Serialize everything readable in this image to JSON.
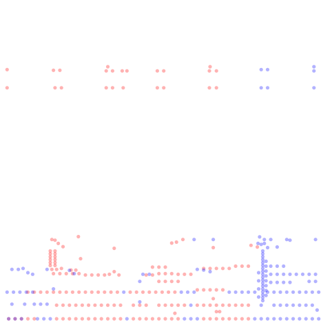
{
  "chart_data": {
    "type": "scatter",
    "title": "",
    "xlabel": "",
    "ylabel": "",
    "grid": false,
    "legend": "none",
    "xlim": [
      0,
      100
    ],
    "ylim": [
      0,
      100
    ],
    "colors": {
      "red": "#ff0000",
      "blue": "#0000ff"
    },
    "series": [
      {
        "color": "red",
        "points": [
          [
            0.5,
            79
          ],
          [
            0.5,
            73.4
          ],
          [
            15,
            78.8
          ],
          [
            17,
            78.8
          ],
          [
            15.5,
            73.4
          ],
          [
            17.5,
            73.4
          ],
          [
            32,
            79.9
          ],
          [
            33.5,
            78.6
          ],
          [
            31.5,
            78.6
          ],
          [
            33.5,
            73.4
          ],
          [
            31.5,
            73.4
          ],
          [
            36.5,
            78.6
          ],
          [
            38,
            78.6
          ],
          [
            36.8,
            73.4
          ],
          [
            47.5,
            78.6
          ],
          [
            49.5,
            78.6
          ],
          [
            47.5,
            73.4
          ],
          [
            49.5,
            73.4
          ],
          [
            64,
            79.9
          ],
          [
            63.8,
            78.6
          ],
          [
            66,
            78.6
          ],
          [
            63.8,
            73.4
          ],
          [
            66,
            73.4
          ],
          [
            14.5,
            26.7
          ],
          [
            15.5,
            26.5
          ],
          [
            16.5,
            25.5
          ],
          [
            18,
            24.5
          ],
          [
            22.8,
            27.6
          ],
          [
            34,
            24
          ],
          [
            52,
            25.6
          ],
          [
            53.5,
            25.9
          ],
          [
            55.5,
            26.7
          ],
          [
            65,
            24.2
          ],
          [
            76.8,
            24.9
          ],
          [
            78.8,
            24.4
          ],
          [
            14,
            23.2
          ],
          [
            14,
            22.3
          ],
          [
            14,
            21.4
          ],
          [
            14,
            20.5
          ],
          [
            14,
            19.6
          ],
          [
            14,
            18.7
          ],
          [
            15.5,
            23.2
          ],
          [
            15.5,
            22.3
          ],
          [
            15.5,
            21.4
          ],
          [
            15.5,
            20.5
          ],
          [
            15.5,
            19.6
          ],
          [
            15.5,
            18.7
          ],
          [
            14.5,
            17.5
          ],
          [
            16,
            17.5
          ],
          [
            17.5,
            17.8
          ],
          [
            20.5,
            17.3
          ],
          [
            22,
            17.3
          ],
          [
            15,
            16.2
          ],
          [
            17,
            16.2
          ],
          [
            19,
            16.2
          ],
          [
            21,
            16.2
          ],
          [
            23,
            16.2
          ],
          [
            25,
            15.8
          ],
          [
            27,
            15.8
          ],
          [
            29,
            15.8
          ],
          [
            31,
            15.8
          ],
          [
            32.5,
            16
          ],
          [
            34,
            16.8
          ],
          [
            35.5,
            15.8
          ],
          [
            44,
            15.8
          ],
          [
            46,
            15.8
          ],
          [
            48,
            16.2
          ],
          [
            50,
            16.2
          ],
          [
            52,
            16.2
          ],
          [
            54,
            16
          ],
          [
            56,
            16
          ],
          [
            58,
            16
          ],
          [
            62,
            17.8
          ],
          [
            64,
            17.8
          ],
          [
            66,
            17.8
          ],
          [
            68,
            17.8
          ],
          [
            70,
            17.8
          ],
          [
            72,
            18.5
          ],
          [
            74,
            18.5
          ],
          [
            76,
            18.5
          ],
          [
            46,
            18.2
          ],
          [
            48,
            18.2
          ],
          [
            50,
            18.2
          ],
          [
            48,
            13.8
          ],
          [
            50,
            13.8
          ],
          [
            52,
            13.8
          ],
          [
            54,
            13.8
          ],
          [
            7,
            10.5
          ],
          [
            9,
            10.5
          ],
          [
            11,
            10.5
          ],
          [
            13,
            10.5
          ],
          [
            15,
            10.5
          ],
          [
            17,
            10.5
          ],
          [
            19,
            10.5
          ],
          [
            21,
            10.5
          ],
          [
            23,
            10.5
          ],
          [
            25,
            10.5
          ],
          [
            27,
            10.5
          ],
          [
            29,
            10.5
          ],
          [
            31,
            10.5
          ],
          [
            33,
            10.5
          ],
          [
            35,
            10.5
          ],
          [
            39,
            10.5
          ],
          [
            41,
            10.5
          ],
          [
            43,
            10.5
          ],
          [
            45,
            10.5
          ],
          [
            47,
            10.5
          ],
          [
            49,
            10.5
          ],
          [
            51,
            10.5
          ],
          [
            53,
            10.5
          ],
          [
            60,
            11.2
          ],
          [
            62,
            11.2
          ],
          [
            64,
            11.2
          ],
          [
            66,
            11.2
          ],
          [
            68,
            11.2
          ],
          [
            16,
            6.5
          ],
          [
            18,
            6.5
          ],
          [
            20,
            6.5
          ],
          [
            22,
            6.5
          ],
          [
            24,
            6.5
          ],
          [
            26,
            6.5
          ],
          [
            28,
            6.5
          ],
          [
            30,
            6.5
          ],
          [
            32,
            6.5
          ],
          [
            34,
            6.5
          ],
          [
            36,
            6.5
          ],
          [
            40,
            6.5
          ],
          [
            42,
            6.5
          ],
          [
            44,
            6.5
          ],
          [
            48,
            6.5
          ],
          [
            50,
            6.5
          ],
          [
            52,
            6.5
          ],
          [
            54,
            6.5
          ],
          [
            56,
            6.5
          ],
          [
            60,
            6.5
          ],
          [
            62,
            6.5
          ],
          [
            64,
            6.5
          ],
          [
            66,
            6.5
          ],
          [
            68,
            6.5
          ],
          [
            70,
            6.5
          ],
          [
            72,
            6.5
          ],
          [
            74,
            6.5
          ],
          [
            76,
            6.5
          ],
          [
            1,
            2.3
          ],
          [
            3,
            2.3
          ],
          [
            5,
            2.3
          ],
          [
            7,
            2.3
          ],
          [
            9,
            2.3
          ],
          [
            16,
            2.3
          ],
          [
            18,
            2.3
          ],
          [
            20,
            2.3
          ],
          [
            22,
            2.3
          ],
          [
            24,
            2.3
          ],
          [
            26,
            2.3
          ],
          [
            28,
            2.3
          ],
          [
            30,
            2.3
          ],
          [
            32,
            2.3
          ],
          [
            34,
            2.3
          ],
          [
            36,
            2.3
          ],
          [
            40,
            2.3
          ],
          [
            42,
            2.3
          ],
          [
            44,
            2.3
          ],
          [
            46,
            2.3
          ],
          [
            48,
            2.3
          ],
          [
            50,
            2.3
          ],
          [
            52,
            2.3
          ],
          [
            54,
            2.3
          ],
          [
            62,
            2.3
          ],
          [
            64,
            2.3
          ],
          [
            66,
            2.3
          ],
          [
            68,
            2.3
          ],
          [
            70,
            2.3
          ],
          [
            72,
            2.3
          ],
          [
            74,
            2.3
          ],
          [
            76,
            2.3
          ],
          [
            65,
            8.5
          ],
          [
            66,
            4.5
          ],
          [
            67,
            4.5
          ],
          [
            53,
            4
          ],
          [
            23.5,
            20.8
          ]
        ]
      },
      {
        "color": "blue",
        "points": [
          [
            80,
            79
          ],
          [
            82,
            79
          ],
          [
            96.5,
            79.9
          ],
          [
            96.5,
            78.6
          ],
          [
            80,
            73.4
          ],
          [
            82,
            73.4
          ],
          [
            96.5,
            73.4
          ],
          [
            59,
            26.7
          ],
          [
            65,
            26.7
          ],
          [
            81,
            26.7
          ],
          [
            83,
            26.7
          ],
          [
            88,
            26.7
          ],
          [
            97,
            26.7
          ],
          [
            80,
            25.2
          ],
          [
            82,
            24.2
          ],
          [
            80.5,
            23.2
          ],
          [
            80.5,
            22.3
          ],
          [
            80.5,
            21.4
          ],
          [
            80.5,
            20.5
          ],
          [
            80.5,
            19.6
          ],
          [
            80.5,
            18.7
          ],
          [
            80.5,
            17.8
          ],
          [
            80.5,
            16.9
          ],
          [
            80.5,
            16
          ],
          [
            80.5,
            15.1
          ],
          [
            80.5,
            14.2
          ],
          [
            80.5,
            13.3
          ],
          [
            80.5,
            12.4
          ],
          [
            80.5,
            11.5
          ],
          [
            80.5,
            10.6
          ],
          [
            80.5,
            9.7
          ],
          [
            80.5,
            8.8
          ],
          [
            80.5,
            7.9
          ],
          [
            81.5,
            20
          ],
          [
            81.5,
            18.5
          ],
          [
            81.5,
            17
          ],
          [
            81.5,
            15.5
          ],
          [
            81.5,
            14
          ],
          [
            81.5,
            12.5
          ],
          [
            81.5,
            11
          ],
          [
            81.5,
            9.5
          ],
          [
            79.2,
            16.5
          ],
          [
            79.2,
            14
          ],
          [
            79.2,
            11.5
          ],
          [
            79.2,
            9
          ],
          [
            83,
            18.5
          ],
          [
            85,
            18.5
          ],
          [
            87,
            18.5
          ],
          [
            83,
            16
          ],
          [
            85,
            16
          ],
          [
            87,
            16
          ],
          [
            89,
            16
          ],
          [
            91,
            16
          ],
          [
            93,
            16
          ],
          [
            95,
            16
          ],
          [
            97,
            16
          ],
          [
            83,
            13.5
          ],
          [
            85,
            13.5
          ],
          [
            87,
            13.5
          ],
          [
            89,
            13.5
          ],
          [
            2,
            17.5
          ],
          [
            4,
            17.5
          ],
          [
            5.5,
            17.8
          ],
          [
            7,
            16.5
          ],
          [
            8.5,
            16
          ],
          [
            13,
            17.5
          ],
          [
            20,
            17.2
          ],
          [
            21.5,
            16.2
          ],
          [
            60,
            17.5
          ],
          [
            62,
            17.3
          ],
          [
            64,
            16.8
          ],
          [
            43,
            16
          ],
          [
            45,
            16
          ],
          [
            42,
            13.8
          ],
          [
            95,
            13.8
          ],
          [
            97,
            13.8
          ],
          [
            0.5,
            10.5
          ],
          [
            2.5,
            10.5
          ],
          [
            4.5,
            10.5
          ],
          [
            6.5,
            10.5
          ],
          [
            8.5,
            10.5
          ],
          [
            15,
            11.5
          ],
          [
            37,
            10.5
          ],
          [
            55,
            10.5
          ],
          [
            57,
            10.5
          ],
          [
            59,
            10.5
          ],
          [
            70,
            10.5
          ],
          [
            72,
            10.5
          ],
          [
            74,
            10.5
          ],
          [
            76,
            10.5
          ],
          [
            78,
            10.5
          ],
          [
            82,
            10.5
          ],
          [
            84,
            10.5
          ],
          [
            86,
            10.5
          ],
          [
            88,
            10.5
          ],
          [
            90,
            10.5
          ],
          [
            92,
            10.5
          ],
          [
            94,
            10.5
          ],
          [
            96,
            10.5
          ],
          [
            98,
            10.5
          ],
          [
            2,
            6.8
          ],
          [
            6,
            6.8
          ],
          [
            9,
            6.8
          ],
          [
            11,
            6.8
          ],
          [
            13,
            6.8
          ],
          [
            42,
            7.5
          ],
          [
            58,
            6.5
          ],
          [
            80,
            6.5
          ],
          [
            84,
            6.5
          ],
          [
            86,
            6.5
          ],
          [
            88,
            6.5
          ],
          [
            90,
            6.5
          ],
          [
            92,
            6.5
          ],
          [
            94,
            6.5
          ],
          [
            96,
            6.5
          ],
          [
            97.5,
            5
          ],
          [
            1,
            2.3
          ],
          [
            3,
            2.3
          ],
          [
            5,
            2.3
          ],
          [
            10,
            2.3
          ],
          [
            12,
            2.3
          ],
          [
            14,
            2.3
          ],
          [
            38,
            2.3
          ],
          [
            56,
            2.3
          ],
          [
            58,
            2.3
          ],
          [
            60,
            2.3
          ],
          [
            78,
            2.3
          ],
          [
            80,
            2.3
          ],
          [
            82,
            2.3
          ],
          [
            84,
            2.3
          ],
          [
            86,
            2.3
          ],
          [
            88,
            2.3
          ],
          [
            90,
            2.3
          ],
          [
            92,
            2.3
          ],
          [
            94,
            2.3
          ],
          [
            96,
            2.3
          ],
          [
            98,
            2.3
          ],
          [
            79.5,
            27.5
          ],
          [
            79,
            25.5
          ],
          [
            81,
            25.5
          ],
          [
            85,
            24.4
          ],
          [
            89,
            26.5
          ]
        ]
      }
    ]
  }
}
